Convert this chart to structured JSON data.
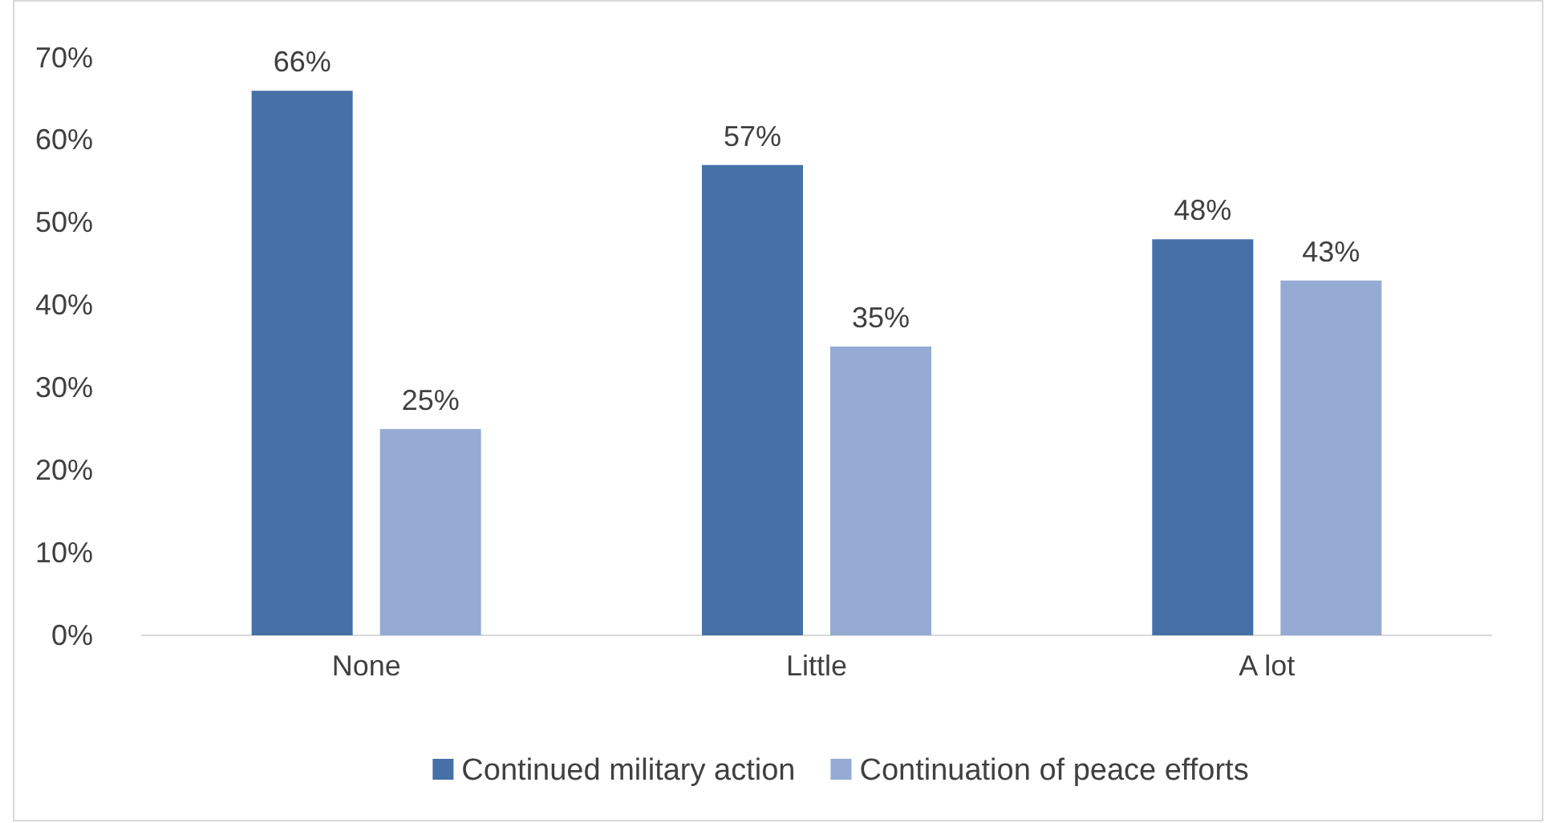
{
  "chart_data": {
    "type": "bar",
    "categories": [
      "None",
      "Little",
      "A lot"
    ],
    "series": [
      {
        "name": "Continued military action",
        "color": "#4571a6",
        "values": [
          66,
          57,
          48
        ],
        "value_labels": [
          "66%",
          "57%",
          "48%"
        ]
      },
      {
        "name": "Continuation of peace efforts",
        "color": "#95abd3",
        "values": [
          25,
          35,
          43
        ],
        "value_labels": [
          "25%",
          "35%",
          "43%"
        ]
      }
    ],
    "ylim": [
      0,
      70
    ],
    "yticks": [
      {
        "value": 0,
        "label": "0%"
      },
      {
        "value": 10,
        "label": "10%"
      },
      {
        "value": 20,
        "label": "20%"
      },
      {
        "value": 30,
        "label": "30%"
      },
      {
        "value": 40,
        "label": "40%"
      },
      {
        "value": 50,
        "label": "50%"
      },
      {
        "value": 60,
        "label": "60%"
      },
      {
        "value": 70,
        "label": "70%"
      }
    ],
    "grid": false,
    "legend": "bottom"
  }
}
